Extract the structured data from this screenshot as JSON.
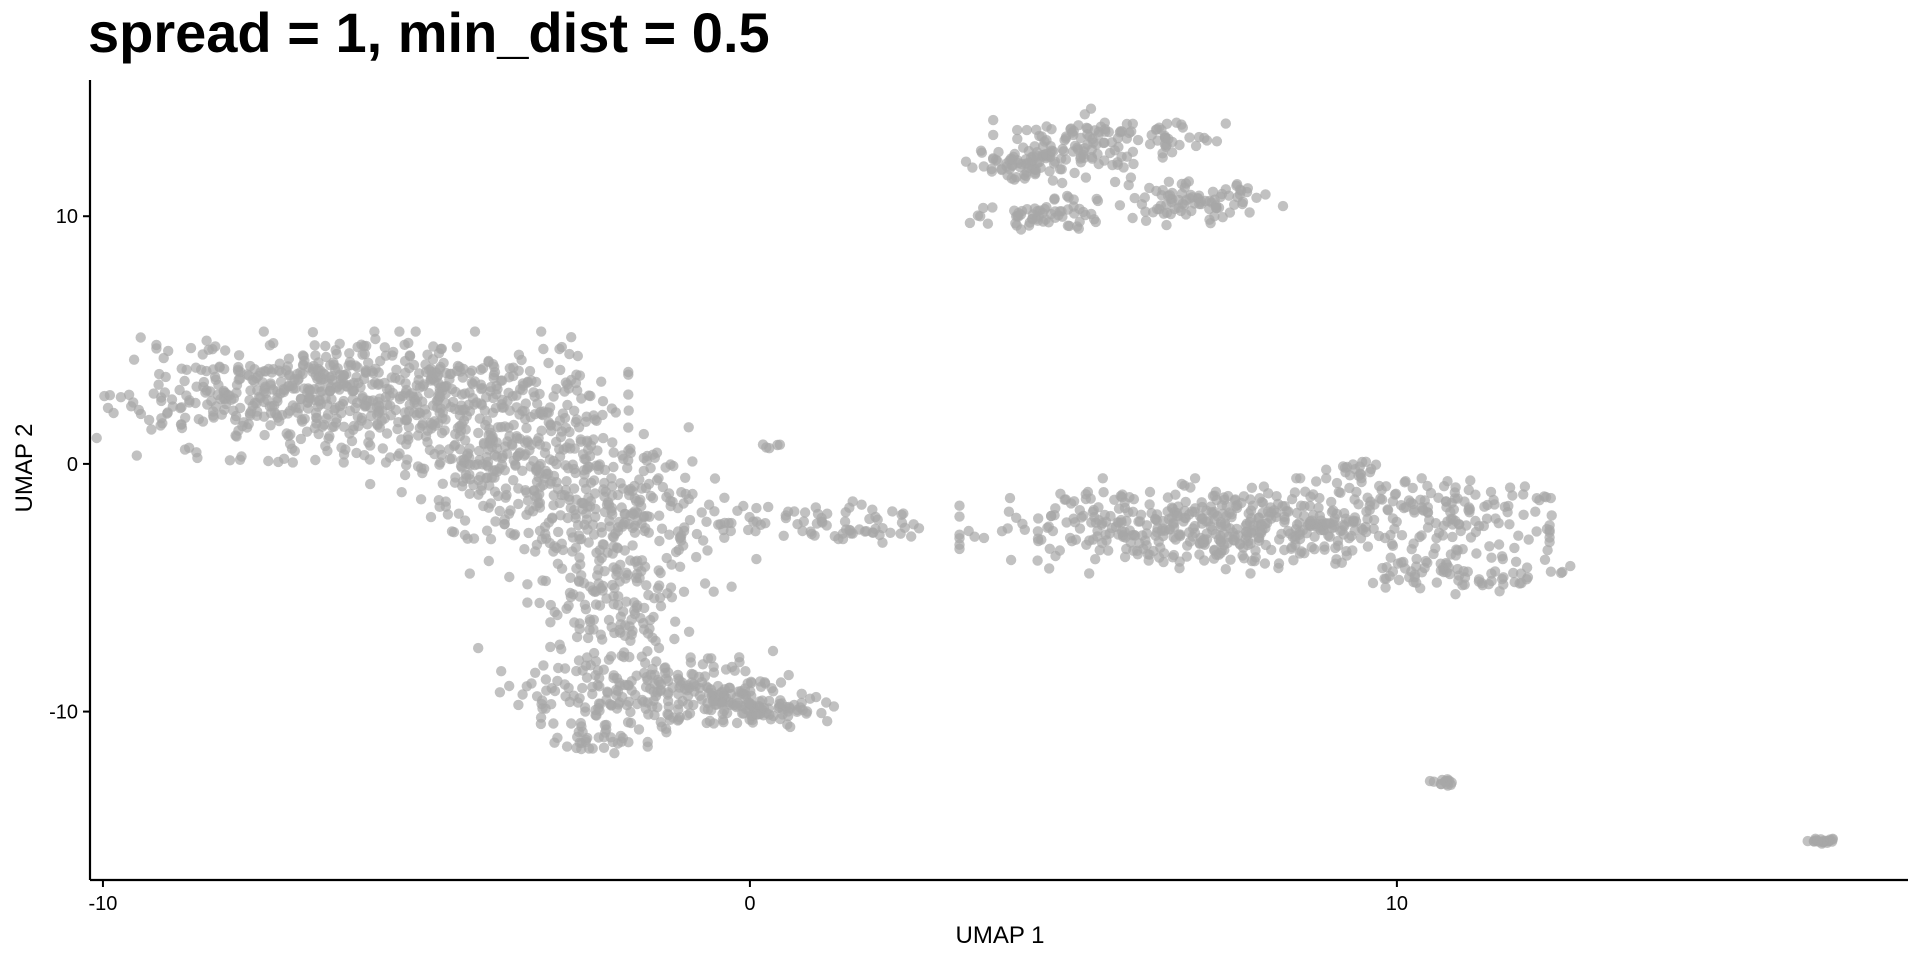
{
  "chart_data": {
    "type": "scatter",
    "title": "spread = 1, min_dist = 0.5",
    "xlabel": "UMAP 1",
    "ylabel": "UMAP 2",
    "xlim": [
      -10.2,
      17.9
    ],
    "ylim": [
      -16.8,
      15.5
    ],
    "x_ticks": [
      -10,
      0,
      10
    ],
    "x_tick_labels": [
      "-10",
      "0",
      "10"
    ],
    "y_ticks": [
      -10,
      0,
      10
    ],
    "y_tick_labels": [
      "-10",
      "0",
      "10"
    ],
    "grid": false,
    "legend": "none",
    "point_color": "#A6A6A6",
    "point_opacity": 0.7,
    "clusters": [
      {
        "cx": -6.2,
        "cy": 2.7,
        "sx": 1.8,
        "sy": 1.1,
        "n": 650
      },
      {
        "cx": -3.8,
        "cy": 0.8,
        "sx": 0.9,
        "sy": 1.6,
        "n": 260
      },
      {
        "cx": -2.3,
        "cy": -1.6,
        "sx": 1.0,
        "sy": 1.4,
        "n": 260
      },
      {
        "cx": -2.0,
        "cy": -5.4,
        "sx": 0.6,
        "sy": 1.4,
        "n": 150
      },
      {
        "cx": -1.8,
        "cy": -9.1,
        "sx": 1.0,
        "sy": 0.9,
        "n": 200
      },
      {
        "cx": -0.4,
        "cy": -9.4,
        "sx": 0.5,
        "sy": 0.5,
        "n": 70
      },
      {
        "cx": 0.4,
        "cy": -9.9,
        "sx": 0.4,
        "sy": 0.3,
        "n": 60
      },
      {
        "cx": -2.3,
        "cy": -11.2,
        "sx": 0.3,
        "sy": 0.2,
        "n": 25
      },
      {
        "cx": 0.9,
        "cy": -2.2,
        "sx": 1.0,
        "sy": 0.5,
        "n": 55
      },
      {
        "cx": 1.9,
        "cy": -2.8,
        "sx": 0.4,
        "sy": 0.15,
        "n": 22
      },
      {
        "cx": 0.3,
        "cy": 0.7,
        "sx": 0.1,
        "sy": 0.05,
        "n": 5
      },
      {
        "cx": 4.3,
        "cy": 12.1,
        "sx": 0.4,
        "sy": 0.4,
        "n": 60
      },
      {
        "cx": 5.2,
        "cy": 12.9,
        "sx": 0.6,
        "sy": 0.6,
        "n": 110
      },
      {
        "cx": 4.6,
        "cy": 10.1,
        "sx": 0.5,
        "sy": 0.3,
        "n": 60
      },
      {
        "cx": 6.8,
        "cy": 10.6,
        "sx": 0.6,
        "sy": 0.4,
        "n": 90
      },
      {
        "cx": 6.6,
        "cy": 13.3,
        "sx": 0.4,
        "sy": 0.3,
        "n": 25
      },
      {
        "cx": 7.8,
        "cy": -2.5,
        "sx": 1.9,
        "sy": 0.8,
        "n": 560
      },
      {
        "cx": 11.0,
        "cy": -4.4,
        "sx": 0.7,
        "sy": 0.4,
        "n": 70
      },
      {
        "cx": 10.9,
        "cy": -1.4,
        "sx": 0.8,
        "sy": 0.4,
        "n": 50
      },
      {
        "cx": 9.4,
        "cy": -0.2,
        "sx": 0.3,
        "sy": 0.3,
        "n": 20
      },
      {
        "cx": 10.8,
        "cy": -12.9,
        "sx": 0.12,
        "sy": 0.1,
        "n": 14
      },
      {
        "cx": 16.6,
        "cy": -15.2,
        "sx": 0.15,
        "sy": 0.08,
        "n": 20
      }
    ]
  }
}
